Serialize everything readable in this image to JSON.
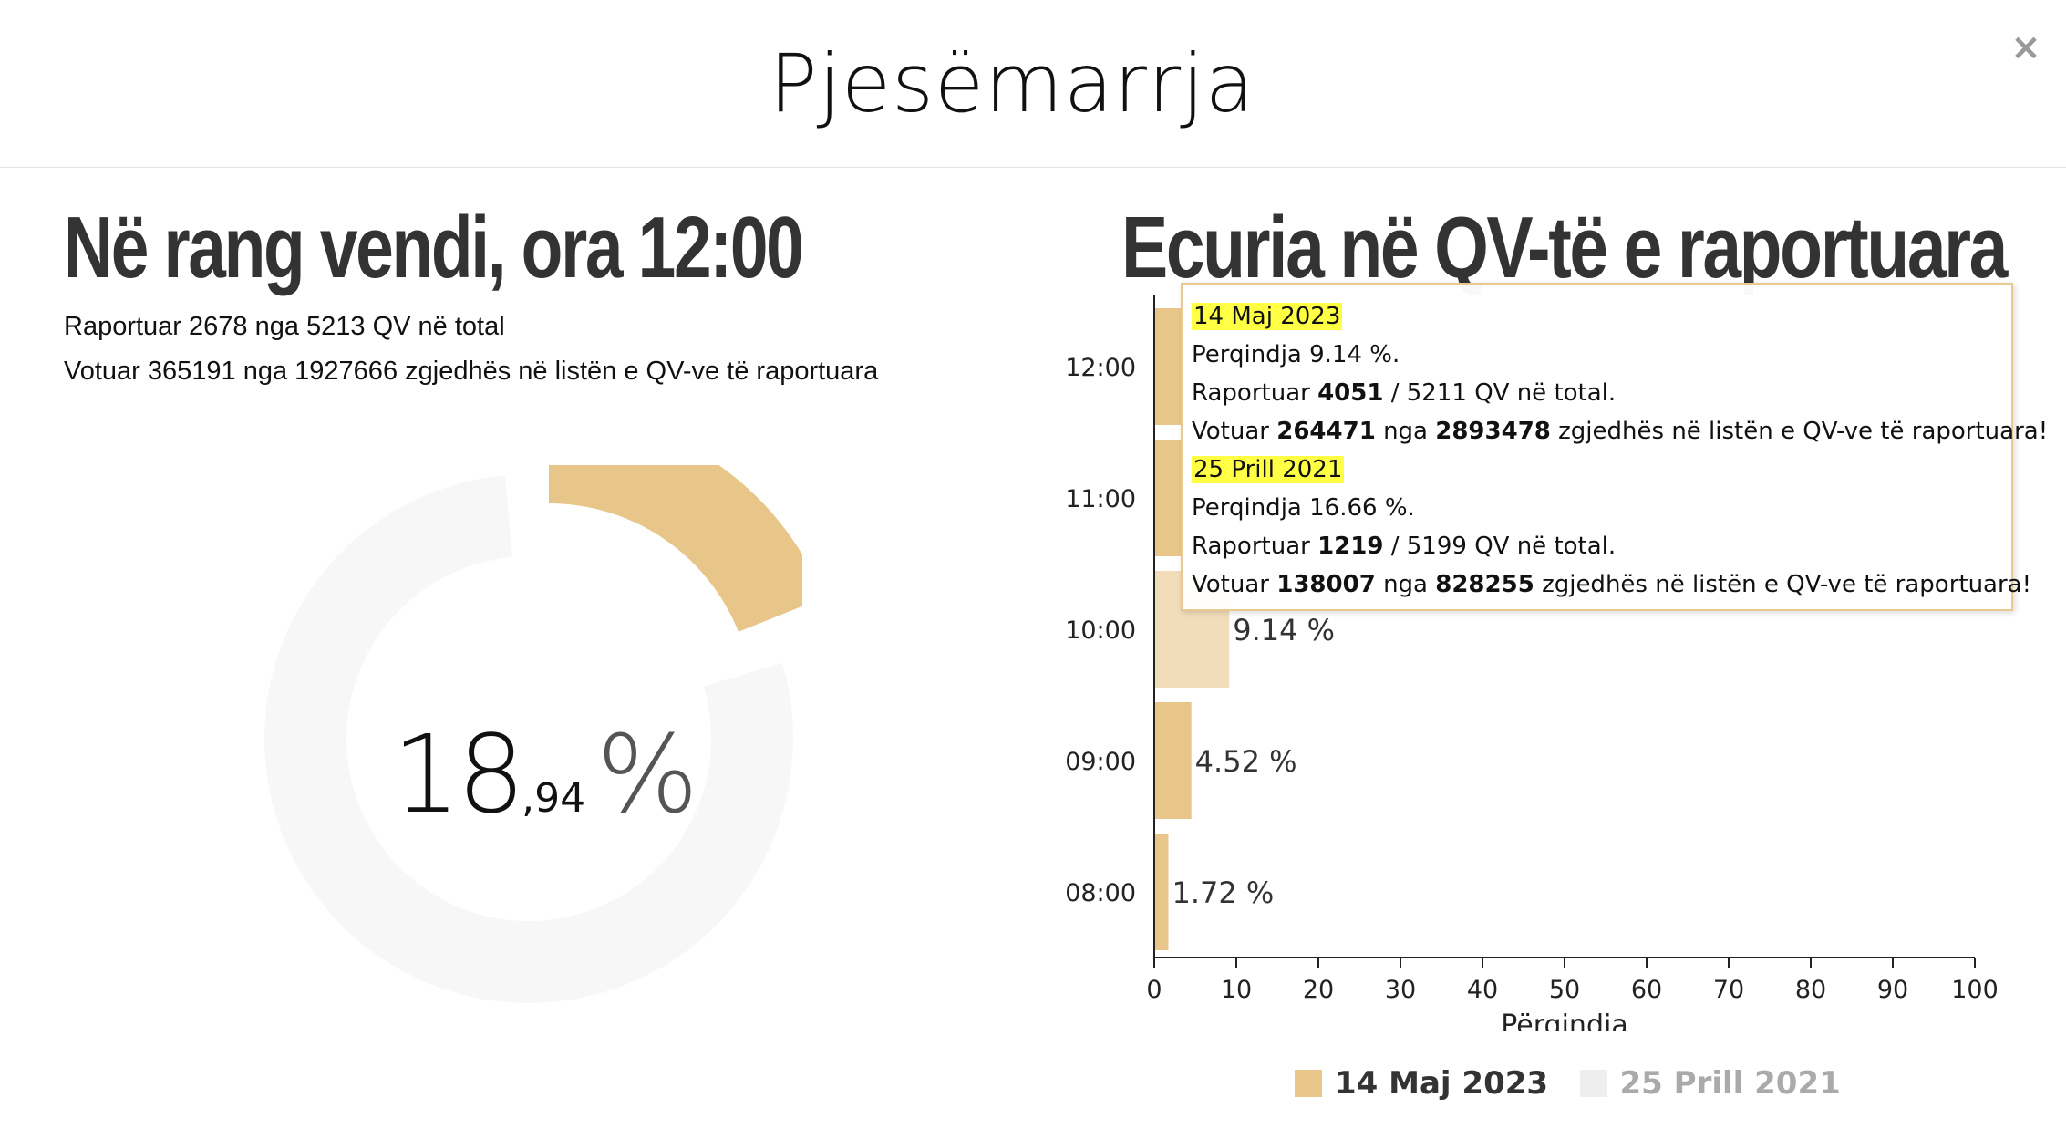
{
  "modal": {
    "title": "Pjesëmarrja",
    "close_label": "×"
  },
  "left": {
    "title": "Në rang vendi, ora 12:00",
    "reported_line": "Raportuar 2678 nga 5213 QV në total",
    "voted_line": "Votuar 365191 nga 1927666 zgjedhës në listën e QV-ve të raportuara",
    "turnout_int": "18",
    "turnout_dec": ",94",
    "turnout_pct": "%",
    "turnout_value": 18.94,
    "accent_color": "#e8c68a",
    "track_color": "#f7f7f7"
  },
  "right": {
    "title": "Ecuria në QV-të e raportuara"
  },
  "chart_data": {
    "type": "bar",
    "orientation": "horizontal",
    "categories": [
      "12:00",
      "11:00",
      "10:00",
      "09:00",
      "08:00"
    ],
    "series": [
      {
        "name": "14 Maj 2023",
        "color": "#e8c68a",
        "values": [
          null,
          null,
          9.14,
          4.52,
          1.72
        ],
        "labels": [
          "",
          "",
          "9.14 %",
          "4.52 %",
          "1.72 %"
        ]
      },
      {
        "name": "25 Prill 2021",
        "color": "#eeeeee",
        "values": [
          null,
          null,
          null,
          null,
          null
        ]
      }
    ],
    "xlabel": "Përqindja",
    "xlim": [
      0,
      100
    ],
    "x_ticks": [
      "0",
      "10",
      "20",
      "30",
      "40",
      "50",
      "60",
      "70",
      "80",
      "90",
      "100"
    ],
    "grid": false,
    "legend": "bottom"
  },
  "tooltip": {
    "a": {
      "date": "14 Maj 2023",
      "pct_label": "Perqindja",
      "pct": "9.14 %.",
      "rep_label": "Raportuar",
      "rep": "4051",
      "rep_total": "/ 5211 QV në total.",
      "vot_label": "Votuar",
      "vot": "264471",
      "vot_mid": "nga",
      "vot_total": "2893478",
      "vot_end": "zgjedhës në listën e QV-ve të raportuara!"
    },
    "b": {
      "date": "25 Prill 2021",
      "pct_label": "Perqindja",
      "pct": "16.66 %.",
      "rep_label": "Raportuar",
      "rep": "1219",
      "rep_total": "/ 5199 QV në total.",
      "vot_label": "Votuar",
      "vot": "138007",
      "vot_mid": "nga",
      "vot_total": "828255",
      "vot_end": "zgjedhës në listën e QV-ve të raportuara!"
    }
  }
}
